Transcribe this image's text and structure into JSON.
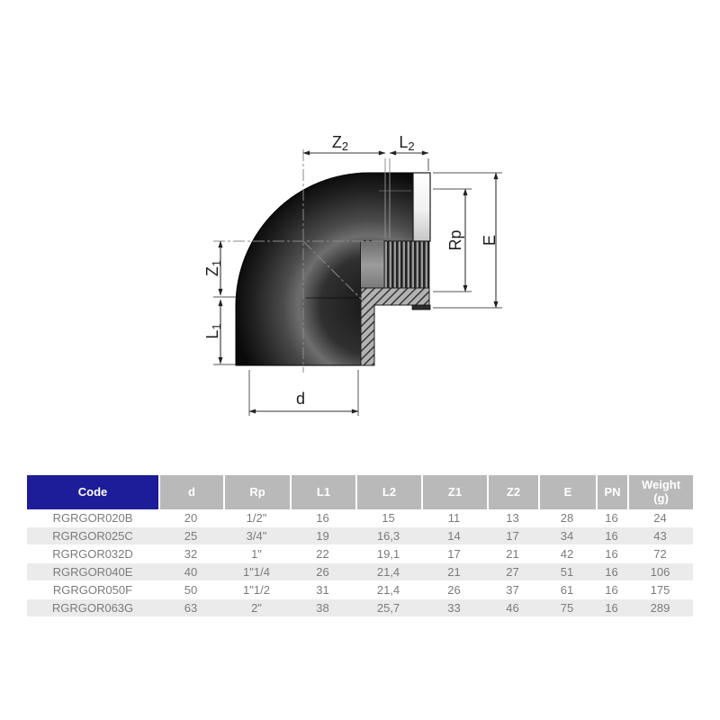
{
  "diagram": {
    "dims": {
      "z2": {
        "main": "Z",
        "sub": "2"
      },
      "l2": {
        "main": "L",
        "sub": "2"
      },
      "z1": {
        "main": "Z",
        "sub": "1"
      },
      "l1": {
        "main": "L",
        "sub": "1"
      },
      "rp": "Rp",
      "e": "E",
      "d": "d"
    }
  },
  "table": {
    "columns": [
      "Code",
      "d",
      "Rp",
      "L1",
      "L2",
      "Z1",
      "Z2",
      "E",
      "PN"
    ],
    "weight_header": {
      "line1": "Weight",
      "line2": "(g)"
    },
    "rows": [
      [
        "RGRGOR020B",
        "20",
        "1/2\"",
        "16",
        "15",
        "11",
        "13",
        "28",
        "16",
        "24"
      ],
      [
        "RGRGOR025C",
        "25",
        "3/4\"",
        "19",
        "16,3",
        "14",
        "17",
        "34",
        "16",
        "43"
      ],
      [
        "RGRGOR032D",
        "32",
        "1\"",
        "22",
        "19,1",
        "17",
        "21",
        "42",
        "16",
        "72"
      ],
      [
        "RGRGOR040E",
        "40",
        "1\"1/4",
        "26",
        "21,4",
        "21",
        "27",
        "51",
        "16",
        "106"
      ],
      [
        "RGRGOR050F",
        "50",
        "1\"1/2",
        "31",
        "21,4",
        "26",
        "37",
        "61",
        "16",
        "175"
      ],
      [
        "RGRGOR063G",
        "63",
        "2\"",
        "38",
        "25,7",
        "33",
        "46",
        "75",
        "16",
        "289"
      ]
    ]
  },
  "colors": {
    "code_header_bg": "#1d1d99",
    "header_bg": "#b9b9b9",
    "row_alt_bg": "#ebebeb",
    "dim_line": "#333333"
  }
}
